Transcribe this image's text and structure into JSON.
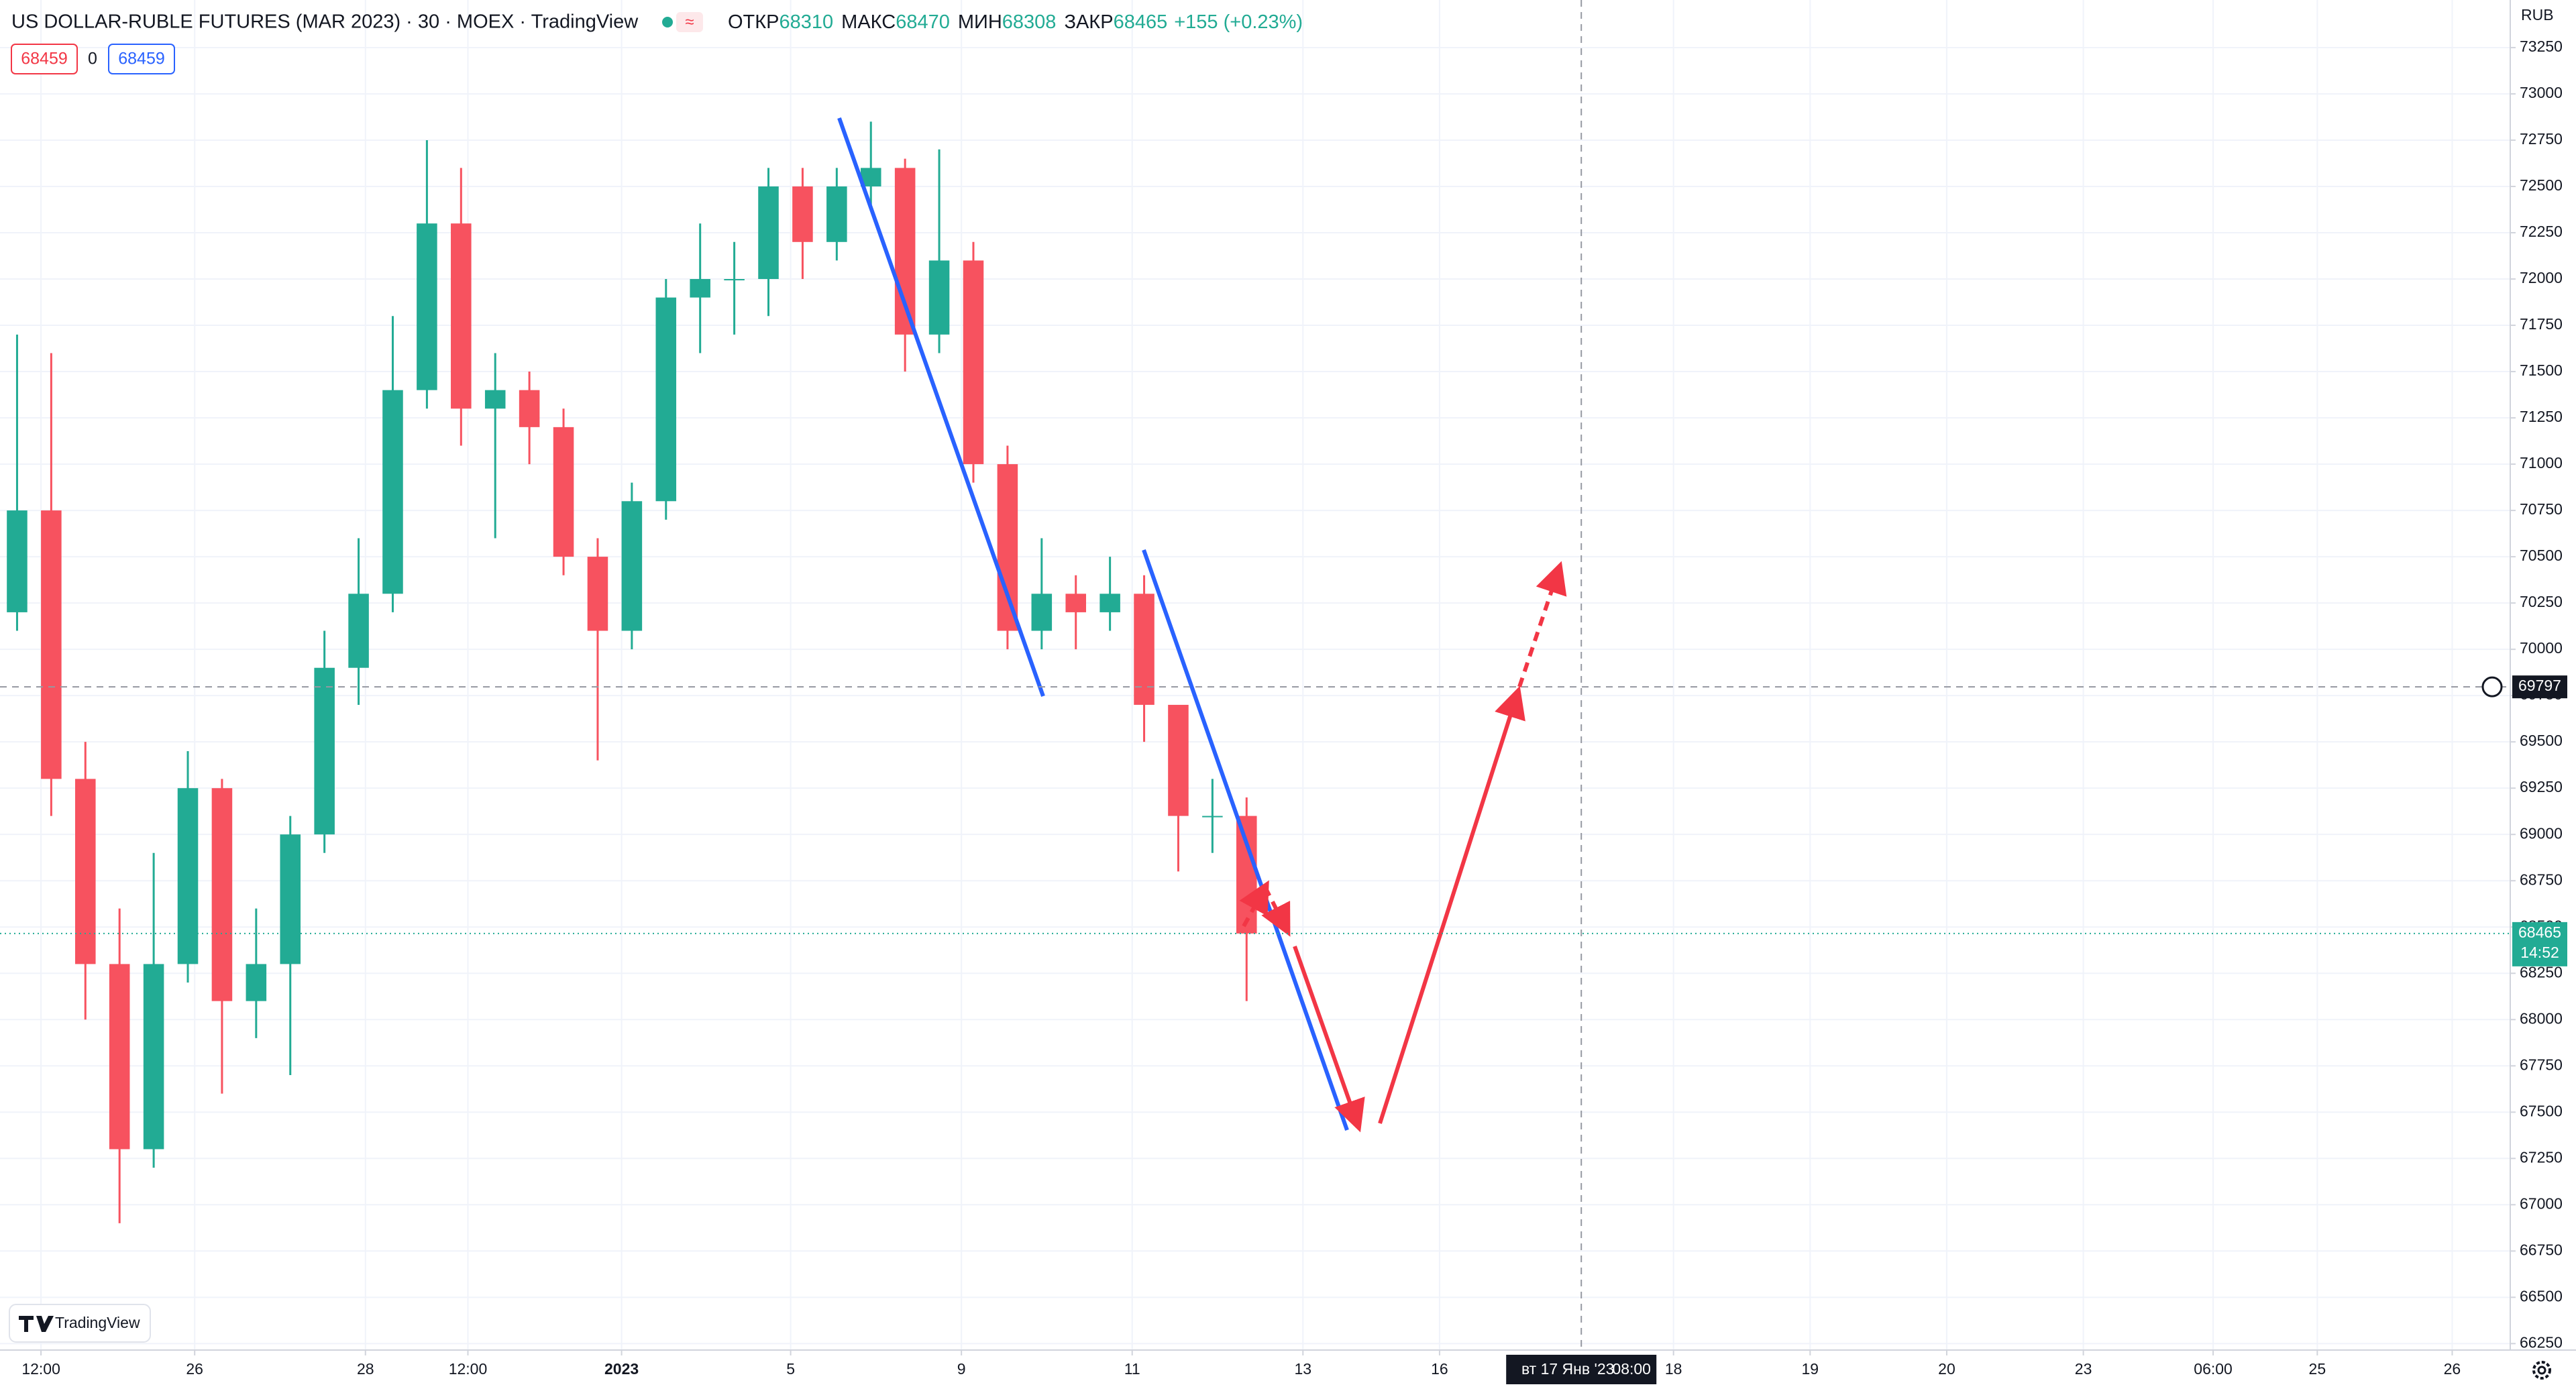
{
  "header": {
    "title": "US DOLLAR-RUBLE FUTURES (MAR 2023) · 30 · MOEX · TradingView",
    "ohlc": [
      {
        "label": "ОТКР",
        "value": 68310
      },
      {
        "label": "МАКС",
        "value": 68470
      },
      {
        "label": "МИН",
        "value": 68308
      },
      {
        "label": "ЗАКР",
        "value": 68465
      }
    ],
    "change": "+155 (+0.23%)",
    "sell": 68459,
    "spread": 0,
    "buy": 68459
  },
  "chart_data": {
    "type": "candlestick",
    "y_axis_label": "RUB",
    "x": [
      1,
      3,
      5,
      7,
      9,
      11,
      13,
      15,
      17,
      19,
      21,
      23,
      25,
      27,
      29,
      31,
      33,
      35,
      37,
      39,
      41,
      43,
      45,
      47,
      49,
      51,
      53,
      55,
      57,
      59,
      61,
      63,
      65,
      67,
      69,
      71,
      73
    ],
    "open": [
      70200,
      70750,
      69300,
      68300,
      67300,
      68300,
      69250,
      68100,
      68300,
      69000,
      69900,
      70300,
      71400,
      72300,
      71300,
      71400,
      71200,
      70500,
      70100,
      70800,
      71900,
      72000,
      72000,
      72500,
      72200,
      72500,
      72600,
      71700,
      72100,
      71000,
      70100,
      70300,
      70200,
      70300,
      69700,
      69100,
      69100
    ],
    "high": [
      71700,
      71600,
      69500,
      68600,
      68900,
      69450,
      69300,
      68600,
      69100,
      70100,
      70600,
      71800,
      72750,
      72600,
      71600,
      71500,
      71300,
      70600,
      70900,
      72000,
      72300,
      72200,
      72600,
      72600,
      72600,
      72850,
      72650,
      72700,
      72200,
      71100,
      70600,
      70400,
      70500,
      70400,
      69700,
      69300,
      69200
    ],
    "low": [
      70100,
      69100,
      68000,
      66900,
      67200,
      68200,
      67600,
      67900,
      67700,
      68900,
      69700,
      70200,
      71300,
      71100,
      70600,
      71000,
      70400,
      69400,
      70000,
      70700,
      71600,
      71700,
      71800,
      72000,
      72100,
      72400,
      71500,
      71600,
      70900,
      70000,
      70000,
      70000,
      70100,
      69500,
      68800,
      68900,
      68100
    ],
    "close": [
      70750,
      69300,
      68300,
      67300,
      68300,
      69250,
      68100,
      68300,
      69000,
      69900,
      70300,
      71400,
      72300,
      71300,
      71400,
      71200,
      70500,
      70100,
      70800,
      71900,
      72000,
      72000,
      72500,
      72200,
      72500,
      72600,
      71700,
      72100,
      71000,
      70100,
      70300,
      70200,
      70300,
      69700,
      69100,
      69100,
      68465
    ],
    "up_color": "#22ab94",
    "down_color": "#f7525f",
    "ylim": [
      66215,
      73507
    ],
    "yticks": [
      66250,
      66500,
      66750,
      67000,
      67250,
      67500,
      67750,
      68000,
      68250,
      68500,
      68750,
      69000,
      69250,
      69500,
      69750,
      70000,
      70250,
      70500,
      70750,
      71000,
      71250,
      71500,
      71750,
      72000,
      72250,
      72500,
      72750,
      73000,
      73250
    ],
    "xlim": [
      0,
      147
    ],
    "xticks": [
      {
        "value": 2.4,
        "label": "12:00"
      },
      {
        "value": 11.4,
        "label": "26"
      },
      {
        "value": 21.4,
        "label": "28"
      },
      {
        "value": 27.4,
        "label": "12:00"
      },
      {
        "value": 36.4,
        "label": "2023"
      },
      {
        "value": 46.3,
        "label": "5"
      },
      {
        "value": 56.3,
        "label": "9"
      },
      {
        "value": 66.3,
        "label": "11"
      },
      {
        "value": 76.3,
        "label": "13"
      },
      {
        "value": 84.3,
        "label": "16"
      },
      {
        "value": 98,
        "label": "18"
      },
      {
        "value": 106,
        "label": "19"
      },
      {
        "value": 114,
        "label": "20"
      },
      {
        "value": 122,
        "label": "23"
      },
      {
        "value": 129.6,
        "label": "06:00"
      },
      {
        "value": 135.7,
        "label": "25"
      },
      {
        "value": 143.6,
        "label": "26"
      }
    ],
    "grid": true,
    "crosshair": {
      "price": 69797,
      "x": 92.6,
      "date_label": "вт 17 Янв '23",
      "time_label": "08:00"
    },
    "last_price": {
      "value": 68465,
      "countdown": "14:52"
    },
    "watermark": "TradingView"
  }
}
